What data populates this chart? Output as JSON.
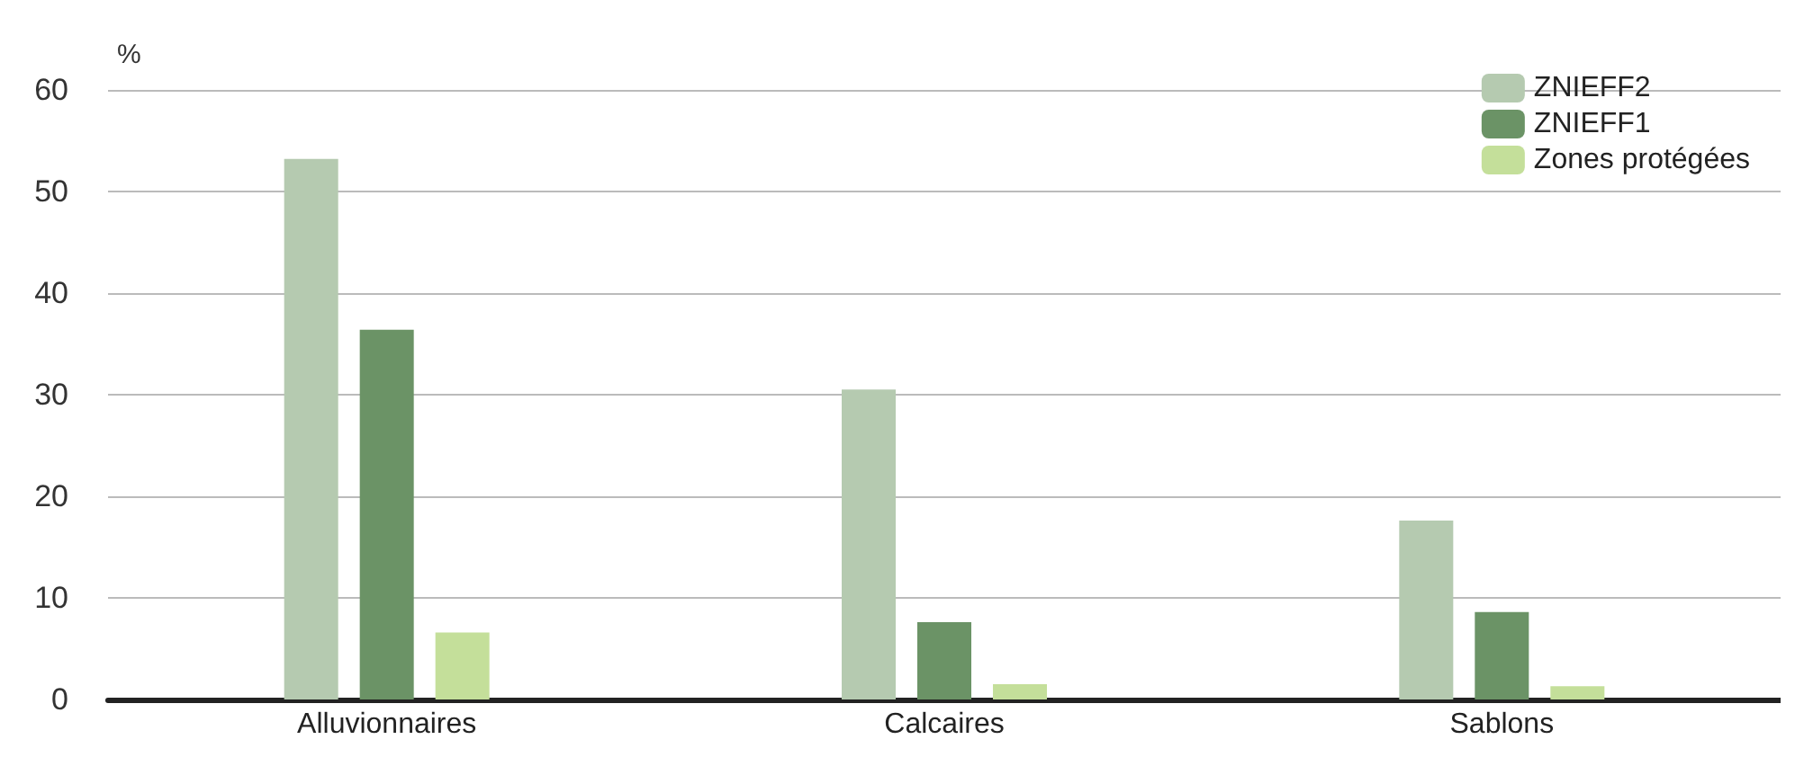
{
  "chart_data": {
    "type": "bar",
    "ylabel": "%",
    "categories": [
      "Alluvionnaires",
      "Calcaires",
      "Sablons"
    ],
    "series": [
      {
        "name": "ZNIEFF2",
        "color": "#b5cab0",
        "values": [
          53.2,
          30.5,
          17.6
        ]
      },
      {
        "name": "ZNIEFF1",
        "color": "#6b9366",
        "values": [
          36.4,
          7.6,
          8.6
        ]
      },
      {
        "name": "Zones protégées",
        "color": "#c4df9a",
        "values": [
          6.6,
          1.5,
          1.3
        ]
      }
    ],
    "ylim": [
      0,
      60
    ],
    "yticks": [
      0,
      10,
      20,
      30,
      40,
      50,
      60
    ],
    "grid": "y",
    "legend": "top right"
  }
}
